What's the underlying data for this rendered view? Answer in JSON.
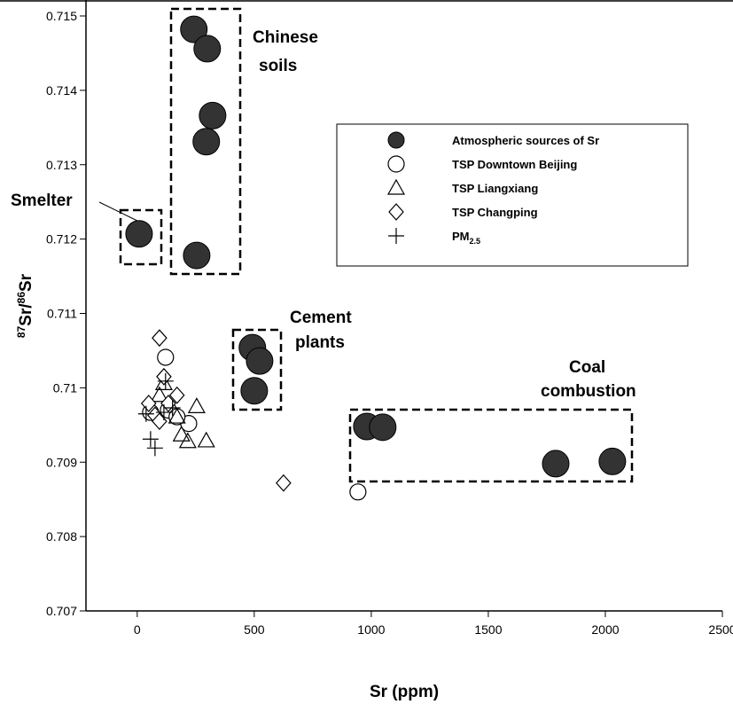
{
  "chart_data": {
    "type": "scatter",
    "xlabel": "Sr (ppm)",
    "ylabel": {
      "sup1": "87",
      "t1": "Sr/",
      "sup2": "86",
      "t2": "Sr"
    },
    "xlim": [
      -200,
      2500
    ],
    "ylim": [
      0.707,
      0.715
    ],
    "xticks": [
      0,
      500,
      1000,
      1500,
      2000,
      2500
    ],
    "yticks": [
      0.707,
      0.708,
      0.709,
      0.71,
      0.711,
      0.712,
      0.713,
      0.714,
      0.715
    ],
    "annotations": {
      "chinese_soils": [
        "Chinese",
        "soils"
      ],
      "smelter": "Smelter",
      "cement_plants": [
        "Cement",
        "plants"
      ],
      "coal_combustion": [
        "Coal",
        "combustion"
      ]
    },
    "series": [
      {
        "name": "Atmospheric sources of Sr",
        "marker": "filled-circle",
        "color": "#333333",
        "x": [
          242,
          299,
          322,
          295,
          254,
          8,
          492,
          523,
          500,
          981,
          1049,
          1788,
          2030
        ],
        "values": [
          0.71482,
          0.71456,
          0.71366,
          0.71331,
          0.71178,
          0.71207,
          0.71054,
          0.71036,
          0.70996,
          0.70948,
          0.70947,
          0.70898,
          0.70901
        ]
      },
      {
        "name": "TSP Downtown Beijing",
        "marker": "circle",
        "color": "#000000",
        "x": [
          121,
          943,
          220,
          57,
          133,
          170
        ],
        "values": [
          0.71041,
          0.7086,
          0.70952,
          0.70967,
          0.7097,
          0.70961
        ]
      },
      {
        "name": "TSP Liangxiang",
        "marker": "triangle",
        "color": "#000000",
        "x": [
          114,
          254,
          189,
          216,
          295,
          95,
          170
        ],
        "values": [
          0.71006,
          0.70975,
          0.70937,
          0.70928,
          0.70929,
          0.7099,
          0.70961
        ]
      },
      {
        "name": "TSP Changping",
        "marker": "diamond",
        "color": "#000000",
        "x": [
          95,
          114,
          625,
          133,
          76,
          49,
          170,
          95
        ],
        "values": [
          0.71067,
          0.71015,
          0.70872,
          0.70979,
          0.70963,
          0.70979,
          0.7099,
          0.70955
        ]
      },
      {
        "name": {
          "t": "PM",
          "sub": "2.5"
        },
        "marker": "plus",
        "color": "#000000",
        "x": [
          38,
          57,
          76,
          121,
          114,
          151
        ],
        "values": [
          0.70965,
          0.70931,
          0.70919,
          0.71009,
          0.70967,
          0.70973
        ]
      }
    ]
  }
}
